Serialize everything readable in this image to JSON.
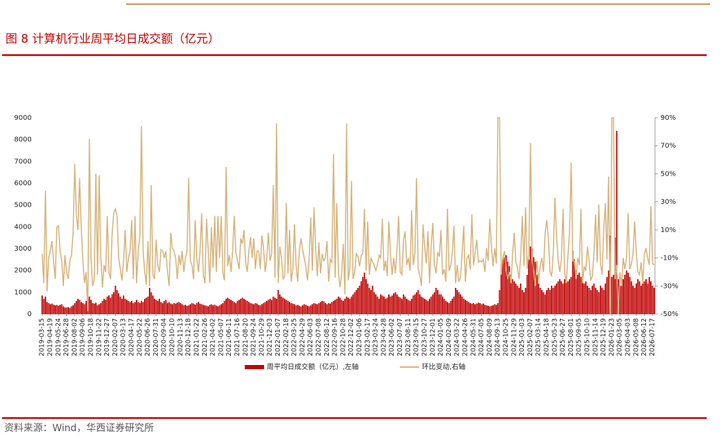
{
  "chart_data": {
    "type": "combo",
    "title": "图 8 计算机行业周平均日成交额（亿元）",
    "source": "资料来源：Wind，华西证券研究所",
    "categories": [
      "2019-03-15",
      null,
      null,
      null,
      null,
      "2019-04-19",
      null,
      null,
      null,
      null,
      "2019-05-24",
      null,
      null,
      null,
      null,
      "2019-06-28",
      null,
      null,
      null,
      null,
      "2019-08-02",
      null,
      null,
      null,
      null,
      "2019-09-06",
      null,
      null,
      null,
      null,
      "2019-10-18",
      null,
      null,
      null,
      null,
      "2019-11-22",
      null,
      null,
      null,
      null,
      "2019-12-27",
      null,
      null,
      null,
      null,
      "2020-02-07",
      null,
      null,
      null,
      null,
      "2020-03-13",
      null,
      null,
      null,
      null,
      "2020-04-17",
      null,
      null,
      null,
      null,
      "2020-05-22",
      null,
      null,
      null,
      null,
      "2020-06-26",
      null,
      null,
      null,
      null,
      "2020-07-31",
      null,
      null,
      null,
      null,
      "2020-09-04",
      null,
      null,
      null,
      null,
      "2020-10-10",
      null,
      null,
      null,
      null,
      "2020-11-13",
      null,
      null,
      null,
      null,
      "2020-12-18",
      null,
      null,
      null,
      null,
      "2021-01-22",
      null,
      null,
      null,
      null,
      "2021-02-26",
      null,
      null,
      null,
      null,
      "2021-04-02",
      null,
      null,
      null,
      null,
      "2021-05-07",
      null,
      null,
      null,
      null,
      "2021-06-11",
      null,
      null,
      null,
      null,
      "2021-07-16",
      null,
      null,
      null,
      null,
      "2021-08-20",
      null,
      null,
      null,
      null,
      "2021-09-24",
      null,
      null,
      null,
      null,
      "2021-10-29",
      null,
      null,
      null,
      null,
      "2021-12-03",
      null,
      null,
      null,
      null,
      "2022-01-07",
      null,
      null,
      null,
      null,
      "2022-02-18",
      null,
      null,
      null,
      null,
      "2022-03-25",
      null,
      null,
      null,
      null,
      "2022-04-29",
      null,
      null,
      null,
      null,
      "2022-06-03",
      null,
      null,
      null,
      null,
      "2022-07-08",
      null,
      null,
      null,
      null,
      "2022-08-12",
      null,
      null,
      null,
      null,
      "2022-09-16",
      null,
      null,
      null,
      null,
      "2022-10-28",
      null,
      null,
      null,
      null,
      "2022-12-02",
      null,
      null,
      null,
      null,
      "2023-01-06",
      null,
      null,
      null,
      null,
      "2023-02-17",
      null,
      null,
      null,
      null,
      "2023-03-24",
      null,
      null,
      null,
      null,
      "2023-04-28",
      null,
      null,
      null,
      null,
      "2023-06-02",
      null,
      null,
      null,
      null,
      "2023-07-07",
      null,
      null,
      null,
      null,
      "2023-08-11",
      null,
      null,
      null,
      null,
      "2023-09-15",
      null,
      null,
      null,
      null,
      "2023-10-27",
      null,
      null,
      null,
      null,
      "2023-12-01",
      null,
      null,
      null,
      null,
      "2024-01-05",
      null,
      null,
      null,
      null,
      "2024-02-09",
      null,
      null,
      null,
      null,
      "2024-03-22",
      null,
      null,
      null,
      null,
      "2024-04-26",
      null,
      null,
      null,
      null,
      "2024-05-31",
      null,
      null,
      null,
      null,
      "2024-07-05",
      null,
      null,
      null,
      null,
      "2024-08-09",
      null,
      null,
      null,
      null,
      "2024-09-13",
      null,
      null,
      null,
      null,
      "2024-10-25",
      null,
      null,
      null,
      null,
      "2024-11-29",
      null,
      null,
      null,
      null,
      "2025-01-03",
      null,
      null,
      null,
      null,
      "2025-02-07",
      null,
      null,
      null,
      null,
      "2025-03-14",
      null,
      null,
      null,
      null,
      "2025-04-18",
      null,
      null,
      null,
      null,
      "2025-05-23",
      null,
      null,
      null,
      null,
      "2025-06-27",
      null,
      null,
      null,
      null,
      "2025-08-01",
      null,
      null,
      null,
      null,
      "2025-09-05",
      null,
      null,
      null,
      null,
      "2025-10-10",
      null,
      null,
      null,
      null,
      "2025-11-14",
      null,
      null,
      null,
      null,
      "2025-12-19",
      null,
      null,
      null,
      null,
      "2026-01-23",
      null,
      null,
      null,
      null,
      "2026-03-05",
      null,
      null,
      null,
      null,
      "2026-04-03",
      null,
      null,
      null,
      null,
      "2026-05-08",
      null,
      null,
      null,
      null,
      "2026-06-12",
      null,
      null,
      null,
      null,
      "2026-07-17",
      null
    ],
    "series": [
      {
        "name": "周平均日成交额（亿元）,左轴",
        "type": "bar",
        "color": "#c00000",
        "values": [
          850,
          700,
          800,
          550,
          500,
          450,
          480,
          430,
          400,
          420,
          380,
          420,
          450,
          350,
          300,
          300,
          320,
          280,
          350,
          400,
          500,
          600,
          700,
          650,
          550,
          500,
          450,
          600,
          700,
          800,
          650,
          500,
          480,
          520,
          400,
          450,
          500,
          600,
          700,
          650,
          800,
          850,
          750,
          900,
          1000,
          1300,
          1100,
          950,
          800,
          700,
          850,
          700,
          650,
          600,
          550,
          600,
          500,
          550,
          650,
          550,
          500,
          600,
          550,
          700,
          750,
          800,
          1200,
          1000,
          850,
          700,
          650,
          600,
          700,
          550,
          500,
          600,
          650,
          500,
          550,
          480,
          450,
          500,
          480,
          520,
          550,
          500,
          450,
          400,
          420,
          380,
          400,
          450,
          500,
          480,
          430,
          500,
          550,
          480,
          450,
          420,
          400,
          380,
          350,
          420,
          450,
          400,
          430,
          380,
          350,
          400,
          450,
          500,
          600,
          700,
          750,
          700,
          650,
          600,
          550,
          500,
          600,
          650,
          700,
          750,
          700,
          650,
          600,
          550,
          500,
          480,
          450,
          500,
          480,
          420,
          400,
          450,
          500,
          550,
          600,
          650,
          700,
          650,
          800,
          750,
          700,
          1100,
          900,
          800,
          750,
          700,
          650,
          600,
          550,
          500,
          480,
          450,
          400,
          420,
          380,
          350,
          400,
          450,
          420,
          380,
          350,
          400,
          450,
          500,
          480,
          450,
          500,
          550,
          600,
          580,
          500,
          450,
          500,
          480,
          550,
          600,
          650,
          700,
          800,
          750,
          650,
          600,
          700,
          800,
          750,
          700,
          800,
          900,
          1000,
          1100,
          1200,
          1300,
          1500,
          1700,
          1900,
          1600,
          1400,
          1200,
          1100,
          1300,
          1000,
          900,
          800,
          700,
          900,
          850,
          800,
          700,
          750,
          900,
          800,
          850,
          950,
          1000,
          900,
          800,
          750,
          700,
          900,
          800,
          700,
          650,
          600,
          700,
          850,
          900,
          1000,
          1100,
          900,
          800,
          750,
          700,
          650,
          600,
          700,
          800,
          900,
          1000,
          1200,
          1100,
          900,
          900,
          800,
          700,
          600,
          550,
          500,
          600,
          700,
          800,
          1200,
          1100,
          1000,
          900,
          800,
          700,
          650,
          600,
          550,
          500,
          480,
          500,
          450,
          480,
          520,
          500,
          450,
          480,
          420,
          400,
          380,
          350,
          380,
          400,
          450,
          420,
          500,
          1100,
          2300,
          2500,
          2600,
          2700,
          2400,
          2200,
          1800,
          1600,
          1500,
          1400,
          1300,
          1200,
          1400,
          1100,
          1000,
          1200,
          1800,
          2500,
          3100,
          3000,
          2600,
          2400,
          1800,
          1400,
          1200,
          1100,
          1000,
          900,
          1100,
          1200,
          1100,
          1300,
          1200,
          1300,
          1400,
          1500,
          1600,
          1500,
          1400,
          1600,
          1700,
          1500,
          1600,
          1700,
          2900,
          2500,
          2000,
          1800,
          1900,
          1700,
          1600,
          1400,
          1500,
          1300,
          1200,
          1100,
          1300,
          1400,
          1200,
          1100,
          1000,
          1300,
          1200,
          1100,
          1400,
          1700,
          2000,
          3600,
          1700,
          1800,
          3500,
          8400,
          1600,
          1300,
          1500,
          1600,
          1800,
          2000,
          1900,
          1700,
          1500,
          1300,
          1200,
          1400,
          1600,
          1500,
          1300,
          1400,
          1500,
          1600,
          1400,
          1700,
          1500,
          1300,
          1200
        ]
      },
      {
        "name": "环比变动,右轴",
        "type": "line",
        "axis": "y2",
        "color": "#d6b47c",
        "values": [
          -7,
          -28,
          38,
          -34,
          -10,
          -5,
          2,
          -12,
          -25,
          12,
          13,
          -5,
          -12,
          -30,
          -8,
          -20,
          -25,
          -12,
          -8,
          8,
          57,
          20,
          10,
          47,
          12,
          -12,
          -28,
          -20,
          -48,
          75,
          -10,
          -30,
          -25,
          50,
          -22,
          49,
          -8,
          -31,
          -15,
          -20,
          20,
          -20,
          -25,
          8,
          22,
          25,
          20,
          -10,
          -18,
          -26,
          -12,
          10,
          -20,
          -10,
          -5,
          17,
          -25,
          20,
          -28,
          -5,
          5,
          84,
          -5,
          -20,
          -29,
          2,
          -30,
          42,
          -22,
          -25,
          3,
          -15,
          -20,
          -4,
          -5,
          -10,
          -5,
          -20,
          -30,
          8,
          -3,
          -5,
          -10,
          -25,
          -8,
          -15,
          -5,
          -20,
          -10,
          -5,
          47,
          -12,
          -15,
          -25,
          17,
          -10,
          -20,
          -5,
          22,
          -22,
          -28,
          18,
          -5,
          -28,
          12,
          -17,
          20,
          -20,
          20,
          -10,
          20,
          -20,
          -26,
          55,
          -16,
          -8,
          -20,
          -5,
          20,
          -6,
          -12,
          -18,
          4,
          0,
          10,
          -13,
          -20,
          -5,
          5,
          -10,
          4,
          -18,
          -5,
          -5,
          -18,
          6,
          -3,
          -20,
          -10,
          8,
          -12,
          -7,
          42,
          -24,
          86,
          -28,
          -2,
          -10,
          -25,
          -23,
          29,
          -21,
          10,
          -27,
          -18,
          14,
          -15,
          -27,
          -5,
          4,
          -4,
          -10,
          -16,
          -26,
          -11,
          19,
          -19,
          26,
          -2,
          -23,
          1,
          -21,
          -7,
          -12,
          -10,
          2,
          -27,
          -11,
          -13,
          64,
          -24,
          29,
          -20,
          -31,
          -21,
          0,
          -36,
          86,
          -26,
          -18,
          45,
          -25,
          -20,
          -7,
          -9,
          -16,
          -8,
          -7,
          25,
          -19,
          16,
          -22,
          -10,
          -13,
          -15,
          -19,
          -15,
          -8,
          -10,
          18,
          -19,
          -12,
          -23,
          16,
          -8,
          -22,
          -10,
          -21,
          -4,
          20,
          -20,
          -22,
          3,
          9,
          -15,
          -10,
          -19,
          24,
          -15,
          -7,
          47,
          -17,
          -23,
          -30,
          14,
          -2,
          -14,
          9,
          -28,
          -1,
          15,
          -15,
          -21,
          -6,
          -9,
          10,
          -22,
          -18,
          -27,
          25,
          -19,
          -16,
          -6,
          13,
          -28,
          -15,
          -27,
          -24,
          -7,
          13,
          -27,
          -10,
          -8,
          -18,
          21,
          -15,
          -6,
          3,
          -13,
          -12,
          -13,
          -11,
          -20,
          -3,
          -12,
          18,
          -2,
          -16,
          -3,
          -14,
          90,
          90,
          -22,
          -10,
          -5,
          -18,
          -25,
          -20,
          -28,
          -8,
          8,
          -13,
          -17,
          -25,
          -9,
          20,
          -16,
          26,
          -18,
          -7,
          72,
          -11,
          -20,
          -30,
          -12,
          -28,
          -15,
          -10,
          -20,
          8,
          17,
          4,
          -20,
          -23,
          -7,
          33,
          6,
          -11,
          -20,
          -11,
          25,
          -20,
          -28,
          -9,
          8,
          58,
          -12,
          -12,
          -25,
          -10,
          -15,
          25,
          -28,
          -16,
          -19,
          -2,
          -12,
          -26,
          -23,
          -7,
          21,
          -13,
          28,
          -14,
          -22,
          10,
          29,
          -11,
          48,
          -50,
          90,
          90,
          -25,
          -15,
          -50,
          -20,
          -30,
          -10,
          -18,
          -10,
          22,
          -18,
          -14,
          -7,
          16,
          -6,
          -20,
          -22,
          -13,
          -28,
          -7,
          -3,
          -10,
          -15,
          27,
          -14,
          -15
        ]
      }
    ],
    "ylim": [
      0,
      9000
    ],
    "yticks": [
      0,
      1000,
      2000,
      3000,
      4000,
      5000,
      6000,
      7000,
      8000,
      9000
    ],
    "y2lim": [
      -50,
      90
    ],
    "y2ticks": [
      {
        "value": -50,
        "label": "-50%"
      },
      {
        "value": -30,
        "label": "-30%"
      },
      {
        "value": -10,
        "label": "-10%"
      },
      {
        "value": 10,
        "label": "10%"
      },
      {
        "value": 30,
        "label": "30%"
      },
      {
        "value": 50,
        "label": "50%"
      },
      {
        "value": 70,
        "label": "70%"
      },
      {
        "value": 90,
        "label": "90%"
      }
    ],
    "legend": "bottom",
    "grid": false
  }
}
